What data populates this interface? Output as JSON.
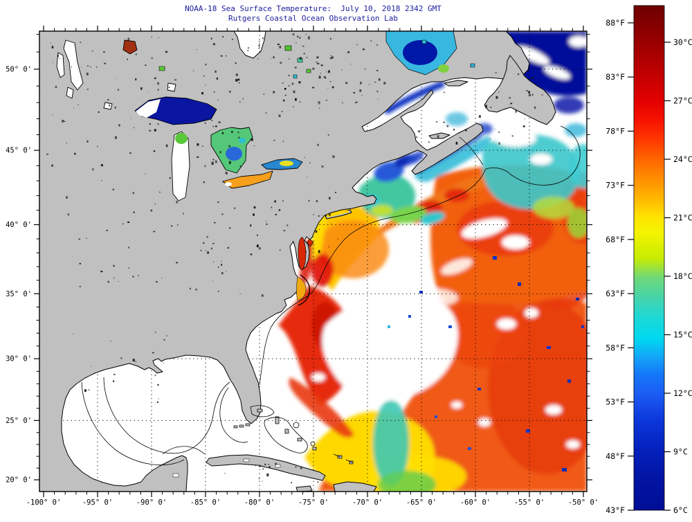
{
  "title": {
    "line1": "NOAA-18 Sea Surface Temperature:  July 10, 2018 2342 GMT",
    "line2": "Rutgers Coastal Ocean Observation Lab"
  },
  "axes": {
    "x": {
      "ticks": [
        {
          "label": "-100° 0'",
          "lon": -100
        },
        {
          "label": "-95° 0'",
          "lon": -95
        },
        {
          "label": "-90° 0'",
          "lon": -90
        },
        {
          "label": "-85° 0'",
          "lon": -85
        },
        {
          "label": "-80° 0'",
          "lon": -80
        },
        {
          "label": "-75° 0'",
          "lon": -75
        },
        {
          "label": "-70° 0'",
          "lon": -70
        },
        {
          "label": "-65° 0'",
          "lon": -65
        },
        {
          "label": "-60° 0'",
          "lon": -60
        },
        {
          "label": "-55° 0'",
          "lon": -55
        },
        {
          "label": "-50° 0'",
          "lon": -50
        }
      ],
      "minor_step_deg": 1
    },
    "y": {
      "ticks": [
        {
          "label": "50° 0'",
          "lat": 50
        },
        {
          "label": "45° 0'",
          "lat": 45
        },
        {
          "label": "40° 0'",
          "lat": 40
        },
        {
          "label": "35° 0'",
          "lat": 35
        },
        {
          "label": "30° 0'",
          "lat": 30
        },
        {
          "label": "25° 0'",
          "lat": 25
        },
        {
          "label": "20° 0'",
          "lat": 20
        }
      ],
      "minor_step_deg": 1
    }
  },
  "colorbar": {
    "fahrenheit_ticks": [
      {
        "label": "88°F",
        "value": 88
      },
      {
        "label": "83°F",
        "value": 83
      },
      {
        "label": "78°F",
        "value": 78
      },
      {
        "label": "73°F",
        "value": 73
      },
      {
        "label": "68°F",
        "value": 68
      },
      {
        "label": "63°F",
        "value": 63
      },
      {
        "label": "58°F",
        "value": 58
      },
      {
        "label": "53°F",
        "value": 53
      },
      {
        "label": "48°F",
        "value": 48
      },
      {
        "label": "43°F",
        "value": 43
      }
    ],
    "celsius_ticks": [
      {
        "label": "30°C",
        "value": 30
      },
      {
        "label": "27°C",
        "value": 27
      },
      {
        "label": "24°C",
        "value": 24
      },
      {
        "label": "21°C",
        "value": 21
      },
      {
        "label": "18°C",
        "value": 18
      },
      {
        "label": "15°C",
        "value": 15
      },
      {
        "label": "12°C",
        "value": 12
      },
      {
        "label": "9°C",
        "value": 9
      },
      {
        "label": "6°C",
        "value": 6
      }
    ]
  },
  "palette": {
    "title_text": "#1c1c9e",
    "land": "#c0c0c0",
    "no_data": "#ffffff",
    "coastline": "#000000",
    "hot_dark_red": "#7a0000",
    "warm_red": "#e01408",
    "warm_orange": "#f55a14",
    "yellow": "#ffd800",
    "green": "#64cc3c",
    "cyan": "#2ad0d8",
    "blue": "#1c5ce8",
    "cold_navy": "#000e96"
  },
  "chart_data": {
    "type": "heatmap",
    "title": "NOAA-18 Sea Surface Temperature:  July 10, 2018 2342 GMT",
    "subtitle": "Rutgers Coastal Ocean Observation Lab",
    "projection": "mercator",
    "lon_range_deg": [
      -100,
      -50
    ],
    "lat_range_deg": [
      20,
      52
    ],
    "colorbar_range_c": [
      6,
      32
    ],
    "colorbar_range_f": [
      43,
      89
    ],
    "colorbar_colormap": "jet (dark red = warm, navy = cold)",
    "notable_values_c": {
      "gulf_stream_sargasso_sea": 27,
      "mid_atlantic_bight_shelf": 22,
      "gulf_of_maine": 14,
      "gulf_of_st_lawrence": 9,
      "labrador_sea": 6,
      "lake_superior": 8,
      "lake_erie": 24
    },
    "no_data_regions": [
      "Gulf of Mexico",
      "Bahamas banks",
      "central Atlantic cloud field",
      "western Lake Superior",
      "Lake Michigan"
    ]
  }
}
